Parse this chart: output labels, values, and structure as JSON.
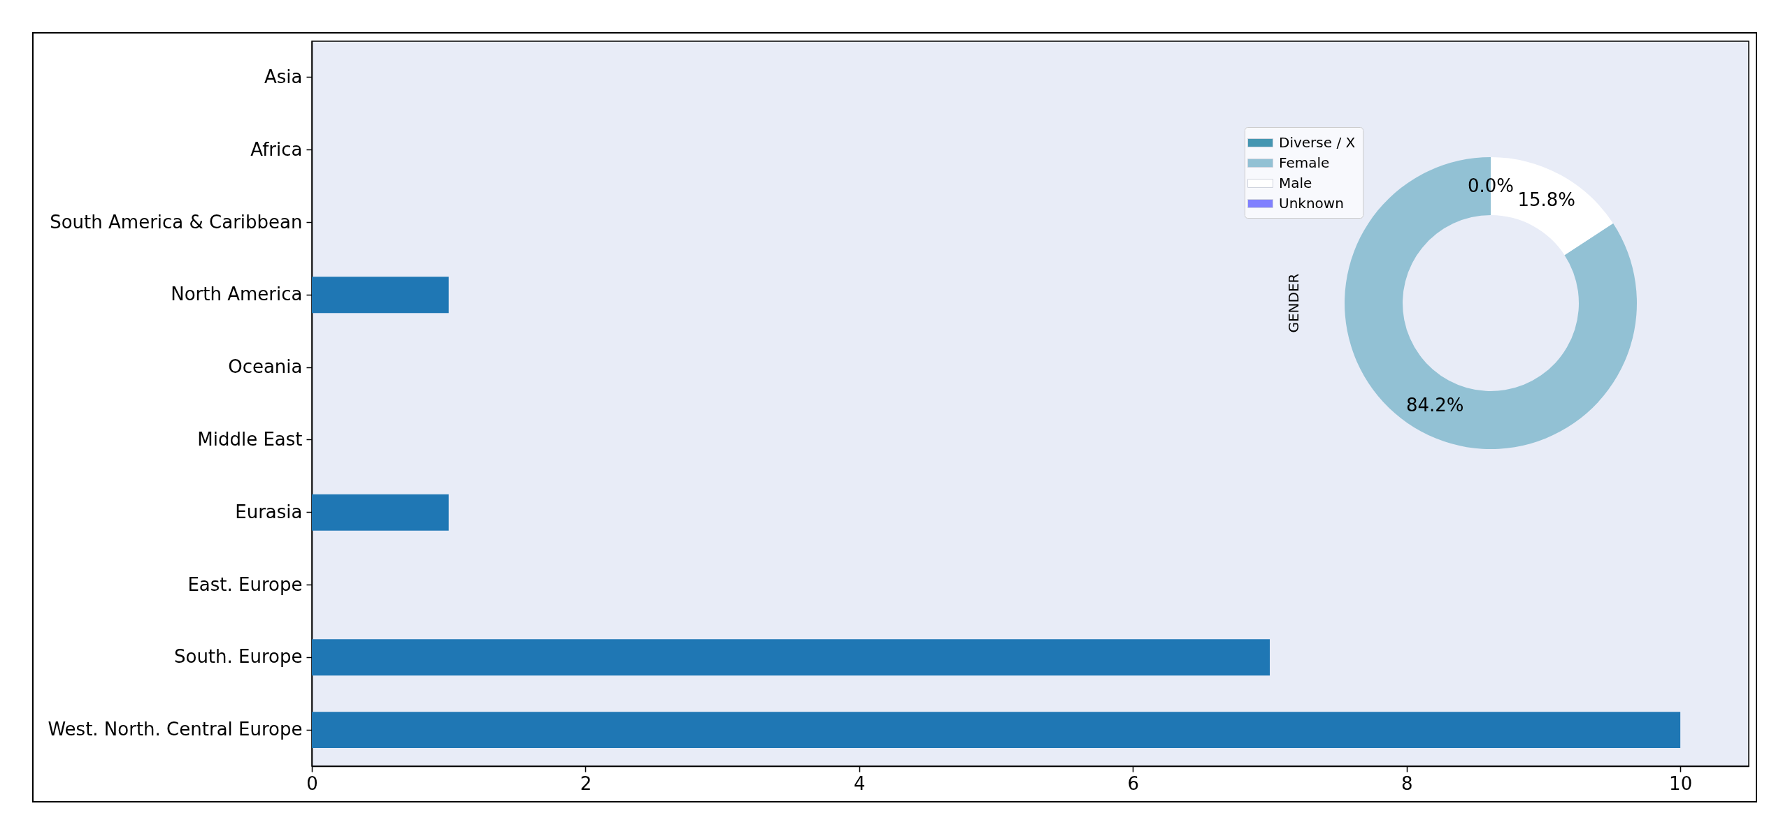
{
  "chart_data": [
    {
      "type": "bar",
      "orientation": "horizontal",
      "categories": [
        "Asia",
        "Africa",
        "South America & Caribbean",
        "North America",
        "Oceania",
        "Middle East",
        "Eurasia",
        "East. Europe",
        "South. Europe",
        "West. North. Central Europe"
      ],
      "values": [
        0,
        0,
        0,
        1,
        0,
        0,
        1,
        0,
        7,
        10
      ],
      "color": "#1f77b4",
      "xlim": [
        0,
        10.5
      ],
      "xticks": [
        0,
        2,
        4,
        6,
        8,
        10
      ]
    },
    {
      "type": "donut",
      "ylabel": "GENDER",
      "categories": [
        "Diverse / X",
        "Female",
        "Male",
        "Unknown"
      ],
      "values": [
        0.0,
        84.2,
        15.8,
        null
      ],
      "colors": [
        "#4596b1",
        "#92c1d4",
        "#ffffff",
        "#8080ff"
      ],
      "value_labels": [
        "0.0%",
        "84.2%",
        "15.8%",
        null
      ],
      "legend": "top left"
    }
  ]
}
